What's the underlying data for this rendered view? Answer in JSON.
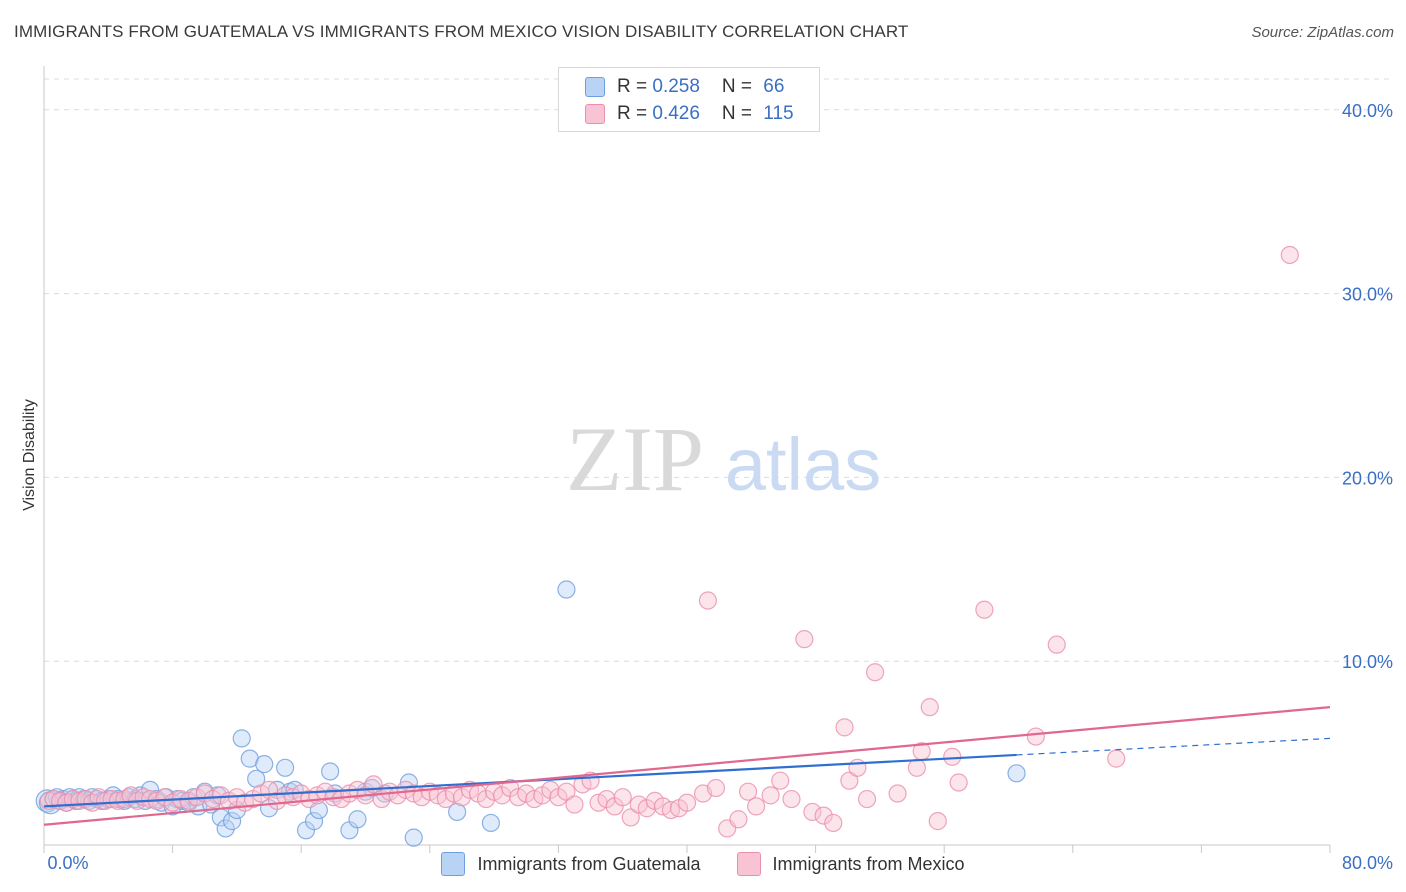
{
  "title": "IMMIGRANTS FROM GUATEMALA VS IMMIGRANTS FROM MEXICO VISION DISABILITY CORRELATION CHART",
  "source": "Source: ZipAtlas.com",
  "watermark": {
    "zip": "ZIP",
    "atlas": "atlas"
  },
  "legend": {
    "r_label": "R = ",
    "n_label": "N = ",
    "series": [
      {
        "name": "Immigrants from Guatemala",
        "r": "0.258",
        "n": "66",
        "fill": "#b9d3f5",
        "stroke": "#6f9fde"
      },
      {
        "name": "Immigrants from Mexico",
        "r": "0.426",
        "n": "115",
        "fill": "#f8c3d3",
        "stroke": "#ea8fae"
      }
    ]
  },
  "chart_data": {
    "type": "scatter",
    "title": "IMMIGRANTS FROM GUATEMALA VS IMMIGRANTS FROM MEXICO VISION DISABILITY CORRELATION CHART",
    "xlabel": "",
    "ylabel": "Vision Disability",
    "xlim": [
      0,
      80
    ],
    "ylim": [
      0,
      42
    ],
    "x_tick_labels": [
      "0.0%",
      "80.0%"
    ],
    "y_ticks": [
      10,
      20,
      30,
      40
    ],
    "y_tick_labels": [
      "10.0%",
      "20.0%",
      "30.0%",
      "40.0%"
    ],
    "grid": true,
    "series": [
      {
        "name": "Immigrants from Guatemala",
        "color": "#6f9fde",
        "line_color": "#2f6fd0",
        "trend": {
          "x": [
            0,
            60.5
          ],
          "y": [
            2.1,
            4.9
          ],
          "dashed_to": [
            80,
            5.8
          ]
        },
        "points": [
          [
            0.2,
            2.4
          ],
          [
            0.4,
            2.3
          ],
          [
            0.6,
            2.5
          ],
          [
            0.8,
            2.6
          ],
          [
            1.0,
            2.4
          ],
          [
            1.2,
            2.5
          ],
          [
            1.4,
            2.3
          ],
          [
            1.6,
            2.6
          ],
          [
            1.8,
            2.5
          ],
          [
            2.0,
            2.4
          ],
          [
            2.2,
            2.6
          ],
          [
            2.5,
            2.5
          ],
          [
            2.8,
            2.4
          ],
          [
            3.0,
            2.6
          ],
          [
            3.3,
            2.5
          ],
          [
            3.6,
            2.4
          ],
          [
            4.0,
            2.5
          ],
          [
            4.3,
            2.7
          ],
          [
            4.6,
            2.5
          ],
          [
            5.0,
            2.4
          ],
          [
            5.3,
            2.6
          ],
          [
            5.7,
            2.5
          ],
          [
            6.0,
            2.7
          ],
          [
            6.3,
            2.4
          ],
          [
            6.6,
            3.0
          ],
          [
            7.0,
            2.5
          ],
          [
            7.3,
            2.3
          ],
          [
            7.6,
            2.6
          ],
          [
            8.0,
            2.1
          ],
          [
            8.3,
            2.5
          ],
          [
            8.6,
            2.4
          ],
          [
            9.0,
            2.3
          ],
          [
            9.3,
            2.6
          ],
          [
            9.6,
            2.1
          ],
          [
            10.0,
            2.9
          ],
          [
            10.4,
            2.2
          ],
          [
            10.8,
            2.7
          ],
          [
            11.0,
            1.5
          ],
          [
            11.3,
            0.9
          ],
          [
            11.7,
            1.3
          ],
          [
            12.0,
            1.9
          ],
          [
            12.3,
            5.8
          ],
          [
            12.8,
            4.7
          ],
          [
            13.2,
            3.6
          ],
          [
            13.7,
            4.4
          ],
          [
            14.0,
            2.0
          ],
          [
            14.5,
            3.0
          ],
          [
            15.0,
            4.2
          ],
          [
            15.3,
            2.9
          ],
          [
            15.6,
            3.0
          ],
          [
            16.3,
            0.8
          ],
          [
            16.8,
            1.3
          ],
          [
            17.1,
            1.9
          ],
          [
            17.8,
            4.0
          ],
          [
            18.1,
            2.8
          ],
          [
            19.0,
            0.8
          ],
          [
            19.5,
            1.4
          ],
          [
            20.0,
            2.9
          ],
          [
            20.4,
            3.1
          ],
          [
            21.2,
            2.8
          ],
          [
            22.7,
            3.4
          ],
          [
            23.0,
            0.4
          ],
          [
            25.7,
            1.8
          ],
          [
            27.8,
            1.2
          ],
          [
            32.5,
            13.9
          ],
          [
            60.5,
            3.9
          ]
        ]
      },
      {
        "name": "Immigrants from Mexico",
        "color": "#ea8fae",
        "line_color": "#e0688f",
        "trend": {
          "x": [
            0,
            80
          ],
          "y": [
            1.1,
            7.5
          ]
        },
        "points": [
          [
            0.3,
            2.4
          ],
          [
            0.6,
            2.5
          ],
          [
            1.0,
            2.4
          ],
          [
            1.4,
            2.3
          ],
          [
            1.8,
            2.5
          ],
          [
            2.2,
            2.4
          ],
          [
            2.6,
            2.5
          ],
          [
            3.0,
            2.3
          ],
          [
            3.4,
            2.6
          ],
          [
            3.8,
            2.4
          ],
          [
            4.2,
            2.5
          ],
          [
            4.6,
            2.4
          ],
          [
            5.0,
            2.5
          ],
          [
            5.4,
            2.7
          ],
          [
            5.8,
            2.4
          ],
          [
            6.2,
            2.6
          ],
          [
            6.6,
            2.5
          ],
          [
            7.0,
            2.4
          ],
          [
            7.5,
            2.6
          ],
          [
            8.0,
            2.3
          ],
          [
            8.5,
            2.5
          ],
          [
            9.0,
            2.4
          ],
          [
            9.5,
            2.6
          ],
          [
            10.0,
            2.8
          ],
          [
            10.5,
            2.5
          ],
          [
            11.0,
            2.7
          ],
          [
            11.5,
            2.4
          ],
          [
            12.0,
            2.6
          ],
          [
            12.5,
            2.3
          ],
          [
            13.0,
            2.5
          ],
          [
            13.5,
            2.8
          ],
          [
            14.0,
            3.0
          ],
          [
            14.5,
            2.4
          ],
          [
            15.0,
            2.7
          ],
          [
            15.5,
            2.6
          ],
          [
            16.0,
            2.8
          ],
          [
            16.5,
            2.5
          ],
          [
            17.0,
            2.7
          ],
          [
            17.5,
            2.9
          ],
          [
            18.0,
            2.6
          ],
          [
            18.5,
            2.5
          ],
          [
            19.0,
            2.8
          ],
          [
            19.5,
            3.0
          ],
          [
            20.0,
            2.7
          ],
          [
            20.5,
            3.3
          ],
          [
            21.0,
            2.5
          ],
          [
            21.5,
            2.9
          ],
          [
            22.0,
            2.7
          ],
          [
            22.5,
            3.0
          ],
          [
            23.0,
            2.8
          ],
          [
            23.5,
            2.6
          ],
          [
            24.0,
            2.9
          ],
          [
            24.5,
            2.7
          ],
          [
            25.0,
            2.5
          ],
          [
            25.5,
            2.8
          ],
          [
            26.0,
            2.6
          ],
          [
            26.5,
            3.0
          ],
          [
            27.0,
            2.8
          ],
          [
            27.5,
            2.5
          ],
          [
            28.0,
            2.9
          ],
          [
            28.5,
            2.7
          ],
          [
            29.0,
            3.1
          ],
          [
            29.5,
            2.6
          ],
          [
            30.0,
            2.8
          ],
          [
            30.5,
            2.5
          ],
          [
            31.0,
            2.7
          ],
          [
            31.5,
            3.0
          ],
          [
            32.0,
            2.6
          ],
          [
            32.5,
            2.9
          ],
          [
            33.0,
            2.2
          ],
          [
            33.5,
            3.3
          ],
          [
            34.0,
            3.5
          ],
          [
            34.5,
            2.3
          ],
          [
            35.0,
            2.5
          ],
          [
            35.5,
            2.1
          ],
          [
            36.0,
            2.6
          ],
          [
            36.5,
            1.5
          ],
          [
            37.0,
            2.2
          ],
          [
            37.5,
            2.0
          ],
          [
            38.0,
            2.4
          ],
          [
            38.5,
            2.1
          ],
          [
            39.0,
            1.9
          ],
          [
            39.5,
            2.0
          ],
          [
            40.0,
            2.3
          ],
          [
            41.0,
            2.8
          ],
          [
            41.3,
            13.3
          ],
          [
            41.8,
            3.1
          ],
          [
            42.5,
            0.9
          ],
          [
            43.2,
            1.4
          ],
          [
            43.8,
            2.9
          ],
          [
            44.3,
            2.1
          ],
          [
            45.2,
            2.7
          ],
          [
            45.8,
            3.5
          ],
          [
            46.5,
            2.5
          ],
          [
            47.3,
            11.2
          ],
          [
            47.8,
            1.8
          ],
          [
            48.5,
            1.6
          ],
          [
            49.1,
            1.2
          ],
          [
            49.8,
            6.4
          ],
          [
            50.1,
            3.5
          ],
          [
            50.6,
            4.2
          ],
          [
            51.2,
            2.5
          ],
          [
            51.7,
            9.4
          ],
          [
            53.1,
            2.8
          ],
          [
            54.3,
            4.2
          ],
          [
            54.6,
            5.1
          ],
          [
            55.1,
            7.5
          ],
          [
            55.6,
            1.3
          ],
          [
            56.5,
            4.8
          ],
          [
            56.9,
            3.4
          ],
          [
            58.5,
            12.8
          ],
          [
            61.7,
            5.9
          ],
          [
            63.0,
            10.9
          ],
          [
            66.7,
            4.7
          ],
          [
            77.5,
            32.1
          ]
        ]
      }
    ]
  }
}
